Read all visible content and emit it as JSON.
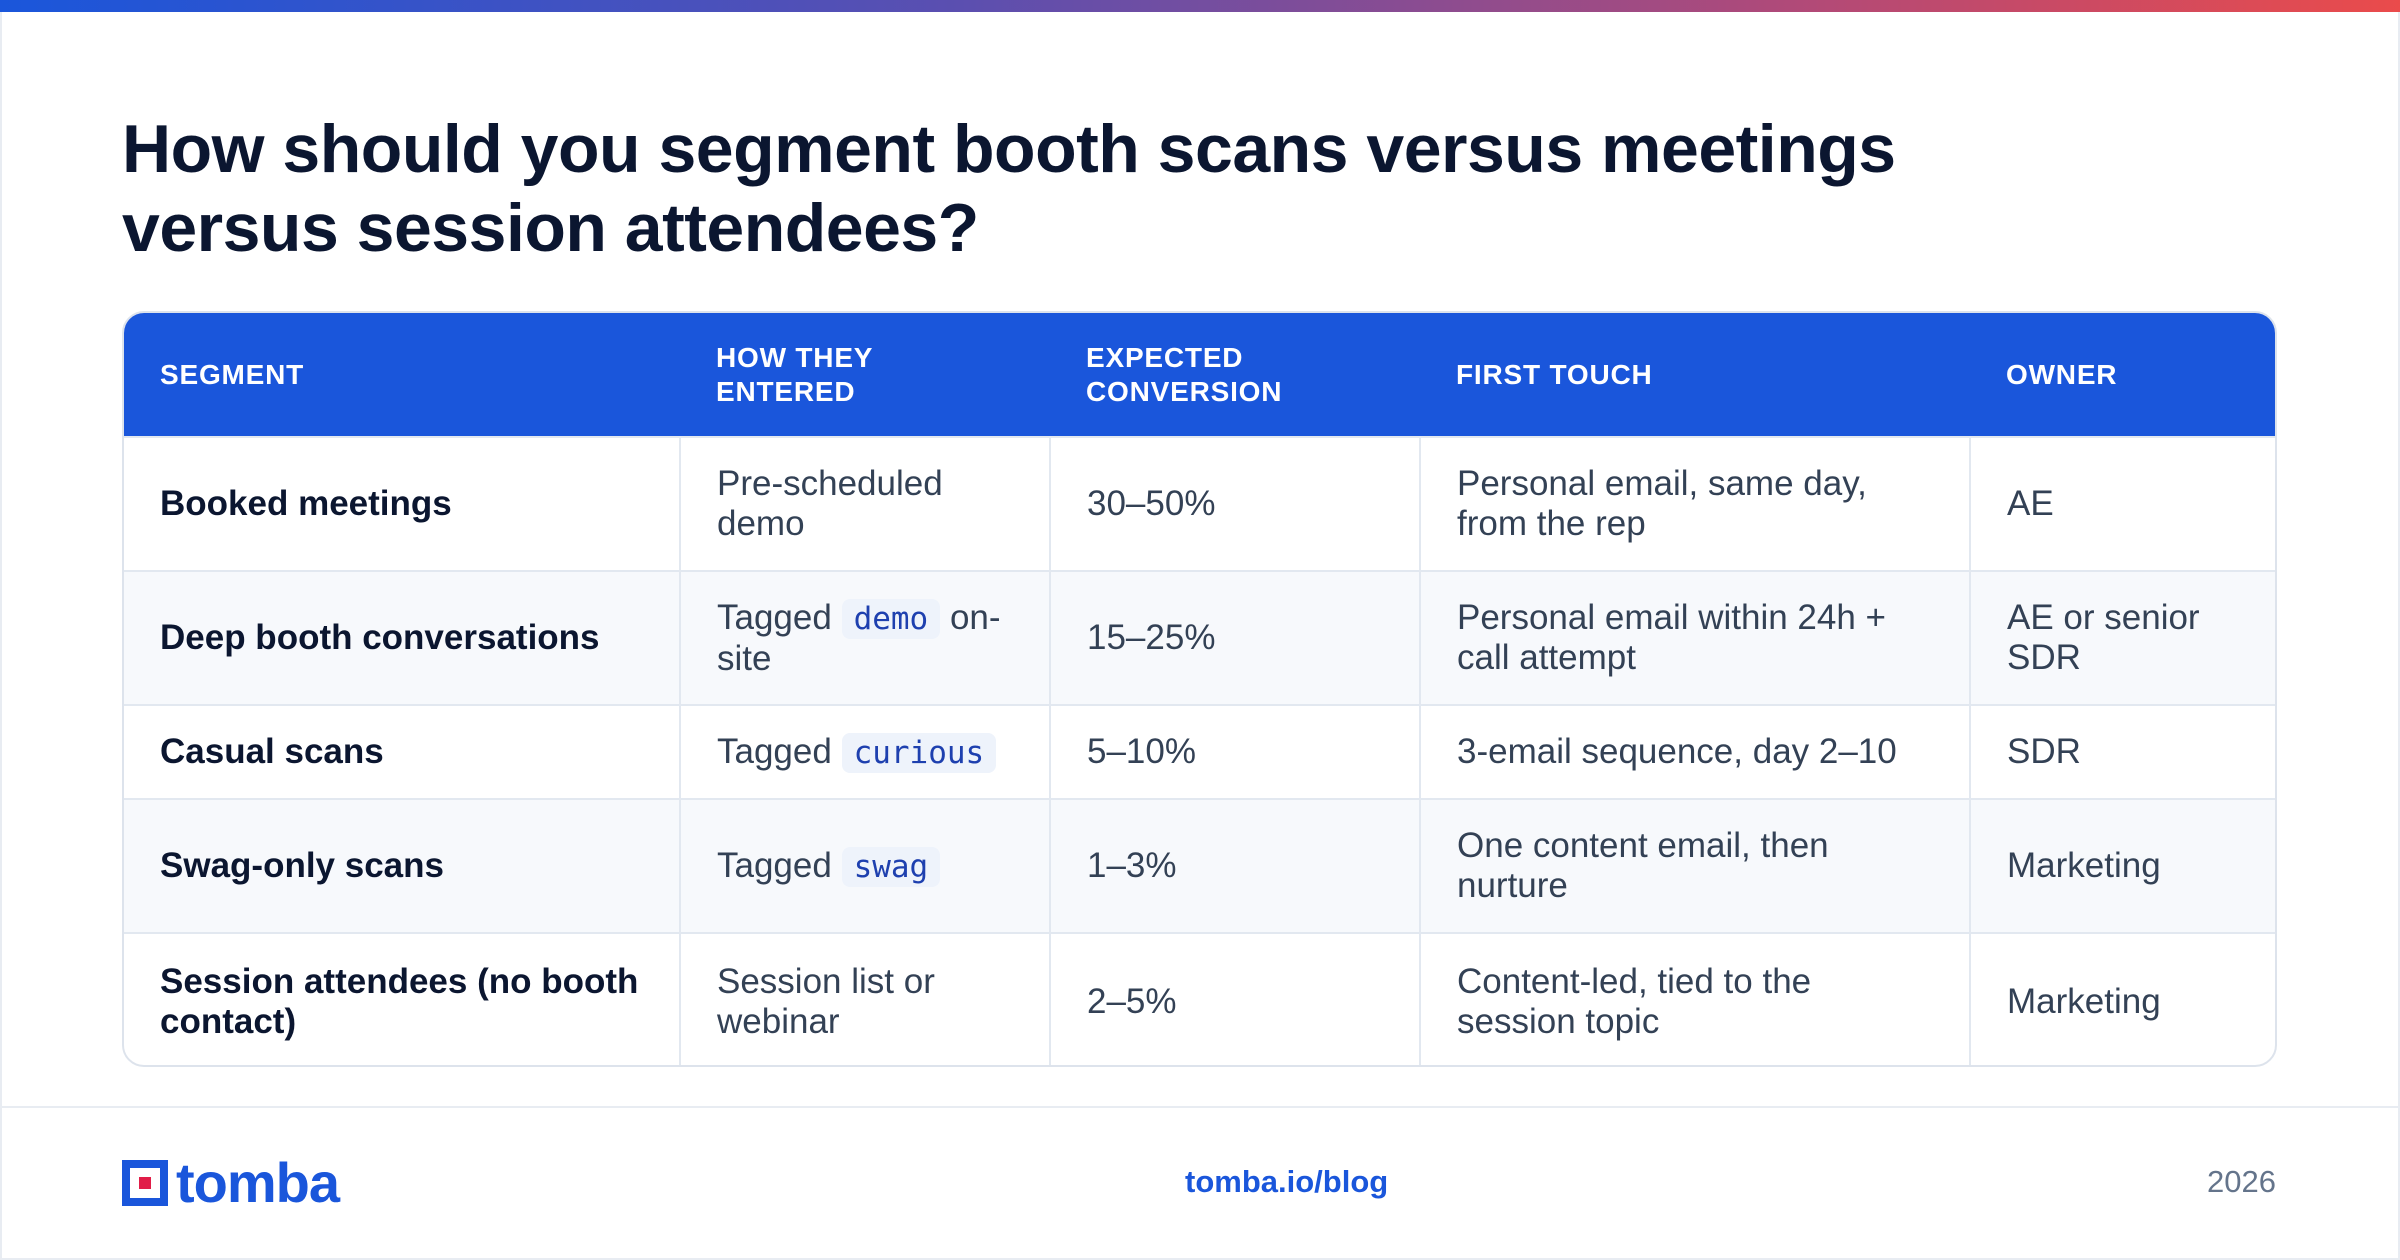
{
  "title": "How should you segment booth scans versus meetings versus session attendees?",
  "table": {
    "headers": [
      "SEGMENT",
      "HOW THEY ENTERED",
      "EXPECTED CONVERSION",
      "FIRST TOUCH",
      "OWNER"
    ],
    "rows": [
      {
        "segment": "Booked meetings",
        "entered_pre": "Pre-scheduled demo",
        "entered_tag": "",
        "entered_post": "",
        "conversion": "30–50%",
        "first_touch": "Personal email, same day, from the rep",
        "owner": "AE"
      },
      {
        "segment": "Deep booth conversations",
        "entered_pre": "Tagged",
        "entered_tag": "demo",
        "entered_post": "on-site",
        "conversion": "15–25%",
        "first_touch": "Personal email within 24h + call attempt",
        "owner": "AE or senior SDR"
      },
      {
        "segment": "Casual scans",
        "entered_pre": "Tagged",
        "entered_tag": "curious",
        "entered_post": "",
        "conversion": "5–10%",
        "first_touch": "3-email sequence, day 2–10",
        "owner": "SDR"
      },
      {
        "segment": "Swag-only scans",
        "entered_pre": "Tagged",
        "entered_tag": "swag",
        "entered_post": "",
        "conversion": "1–3%",
        "first_touch": "One content email, then nurture",
        "owner": "Marketing"
      },
      {
        "segment": "Session attendees (no booth contact)",
        "entered_pre": "Session list or webinar",
        "entered_tag": "",
        "entered_post": "",
        "conversion": "2–5%",
        "first_touch": "Content-led, tied to the session topic",
        "owner": "Marketing"
      }
    ]
  },
  "footer": {
    "logo_text": "tomba",
    "url": "tomba.io/blog",
    "year": "2026"
  },
  "colors": {
    "accent": "#1a56db",
    "logo_dot": "#e11d48",
    "text": "#0b1630"
  }
}
